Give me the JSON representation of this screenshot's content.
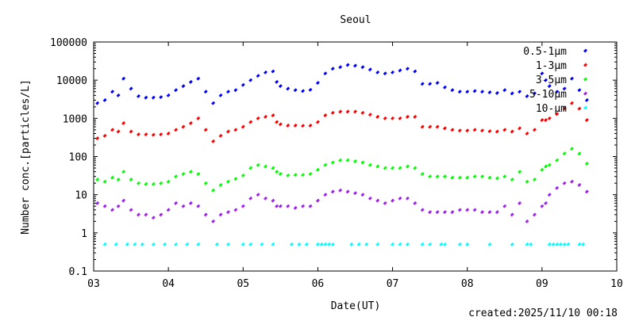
{
  "chart_data": {
    "type": "scatter",
    "title": "Seoul",
    "xlabel": "Date(UT)",
    "ylabel": "Number conc.[particles/L]",
    "yscale": "log",
    "xlim": [
      3,
      10
    ],
    "ylim": [
      0.1,
      100000
    ],
    "x_tick_labels": [
      "03",
      "04",
      "05",
      "06",
      "07",
      "08",
      "09",
      "10"
    ],
    "y_tick_labels": [
      "0.1",
      "1",
      "10",
      "100",
      "1000",
      "10000",
      "100000"
    ],
    "legend_position": "top-right",
    "grid": false,
    "series": [
      {
        "name": "0.5-1μm",
        "color": "#0000ff",
        "x": [
          3.05,
          3.15,
          3.25,
          3.33,
          3.4,
          3.5,
          3.6,
          3.7,
          3.8,
          3.9,
          4.0,
          4.1,
          4.2,
          4.3,
          4.4,
          4.5,
          4.6,
          4.7,
          4.8,
          4.9,
          5.0,
          5.1,
          5.2,
          5.3,
          5.4,
          5.45,
          5.5,
          5.6,
          5.7,
          5.8,
          5.9,
          6.0,
          6.1,
          6.2,
          6.3,
          6.4,
          6.5,
          6.6,
          6.7,
          6.8,
          6.9,
          7.0,
          7.1,
          7.2,
          7.3,
          7.4,
          7.5,
          7.6,
          7.7,
          7.8,
          7.9,
          8.0,
          8.1,
          8.2,
          8.3,
          8.4,
          8.5,
          8.6,
          8.7,
          8.8,
          8.9,
          9.0,
          9.05,
          9.1,
          9.2,
          9.3,
          9.4,
          9.5,
          9.6
        ],
        "y": [
          2500,
          3000,
          5000,
          4000,
          11000,
          6000,
          3800,
          3500,
          3500,
          3600,
          4000,
          5500,
          7000,
          9000,
          11000,
          5000,
          2500,
          4000,
          5000,
          5500,
          7500,
          10000,
          13000,
          16000,
          17000,
          9000,
          7000,
          6000,
          5500,
          5200,
          5600,
          8500,
          15000,
          20000,
          22000,
          25000,
          24000,
          22000,
          19000,
          16000,
          15000,
          16000,
          18000,
          20000,
          17000,
          8000,
          8000,
          8500,
          6500,
          5500,
          5000,
          5000,
          5200,
          5000,
          4800,
          4600,
          5500,
          4500,
          5000,
          3800,
          4500,
          15000,
          10000,
          7000,
          5000,
          6000,
          11000,
          5500,
          3000
        ]
      },
      {
        "name": "1-3μm",
        "color": "#ff0000",
        "x": [
          3.05,
          3.15,
          3.25,
          3.33,
          3.4,
          3.5,
          3.6,
          3.7,
          3.8,
          3.9,
          4.0,
          4.1,
          4.2,
          4.3,
          4.4,
          4.5,
          4.6,
          4.7,
          4.8,
          4.9,
          5.0,
          5.1,
          5.2,
          5.3,
          5.4,
          5.45,
          5.5,
          5.6,
          5.7,
          5.8,
          5.9,
          6.0,
          6.1,
          6.2,
          6.3,
          6.4,
          6.5,
          6.6,
          6.7,
          6.8,
          6.9,
          7.0,
          7.1,
          7.2,
          7.3,
          7.4,
          7.5,
          7.6,
          7.7,
          7.8,
          7.9,
          8.0,
          8.1,
          8.2,
          8.3,
          8.4,
          8.5,
          8.6,
          8.7,
          8.8,
          8.9,
          9.0,
          9.05,
          9.1,
          9.2,
          9.3,
          9.4,
          9.5,
          9.6
        ],
        "y": [
          300,
          350,
          500,
          450,
          750,
          450,
          380,
          380,
          370,
          380,
          400,
          500,
          600,
          750,
          1000,
          500,
          250,
          350,
          450,
          500,
          600,
          800,
          1000,
          1100,
          1200,
          800,
          700,
          650,
          650,
          640,
          650,
          800,
          1200,
          1400,
          1500,
          1500,
          1500,
          1400,
          1250,
          1100,
          1000,
          1000,
          1000,
          1100,
          1100,
          600,
          600,
          600,
          550,
          500,
          480,
          480,
          500,
          480,
          460,
          450,
          500,
          450,
          550,
          400,
          500,
          900,
          900,
          1000,
          1300,
          1800,
          2500,
          1800,
          900
        ]
      },
      {
        "name": "3-5μm",
        "color": "#00ff00",
        "x": [
          3.05,
          3.15,
          3.25,
          3.33,
          3.4,
          3.5,
          3.6,
          3.7,
          3.8,
          3.9,
          4.0,
          4.1,
          4.2,
          4.3,
          4.4,
          4.5,
          4.6,
          4.7,
          4.8,
          4.9,
          5.0,
          5.1,
          5.2,
          5.3,
          5.4,
          5.45,
          5.5,
          5.6,
          5.7,
          5.8,
          5.9,
          6.0,
          6.1,
          6.2,
          6.3,
          6.4,
          6.5,
          6.6,
          6.7,
          6.8,
          6.9,
          7.0,
          7.1,
          7.2,
          7.3,
          7.4,
          7.5,
          7.6,
          7.7,
          7.8,
          7.9,
          8.0,
          8.1,
          8.2,
          8.3,
          8.4,
          8.5,
          8.6,
          8.7,
          8.8,
          8.9,
          9.0,
          9.05,
          9.1,
          9.2,
          9.3,
          9.4,
          9.5,
          9.6
        ],
        "y": [
          25,
          22,
          28,
          25,
          40,
          25,
          20,
          19,
          19,
          20,
          22,
          30,
          35,
          40,
          35,
          20,
          13,
          18,
          22,
          26,
          32,
          50,
          60,
          55,
          50,
          40,
          35,
          32,
          33,
          33,
          35,
          45,
          60,
          70,
          80,
          80,
          75,
          70,
          60,
          55,
          50,
          50,
          50,
          55,
          50,
          35,
          30,
          30,
          30,
          28,
          28,
          28,
          30,
          30,
          28,
          27,
          30,
          25,
          40,
          22,
          25,
          45,
          55,
          60,
          80,
          120,
          160,
          120,
          65
        ]
      },
      {
        "name": "5-10μm",
        "color": "#a020f0",
        "x": [
          3.05,
          3.15,
          3.25,
          3.33,
          3.4,
          3.5,
          3.6,
          3.7,
          3.8,
          3.9,
          4.0,
          4.1,
          4.2,
          4.3,
          4.4,
          4.5,
          4.6,
          4.7,
          4.8,
          4.9,
          5.0,
          5.1,
          5.2,
          5.3,
          5.4,
          5.45,
          5.5,
          5.6,
          5.7,
          5.8,
          5.9,
          6.0,
          6.1,
          6.2,
          6.3,
          6.4,
          6.5,
          6.6,
          6.7,
          6.8,
          6.9,
          7.0,
          7.1,
          7.2,
          7.3,
          7.4,
          7.5,
          7.6,
          7.7,
          7.8,
          7.9,
          8.0,
          8.1,
          8.2,
          8.3,
          8.4,
          8.5,
          8.6,
          8.7,
          8.8,
          8.9,
          9.0,
          9.05,
          9.1,
          9.2,
          9.3,
          9.4,
          9.5,
          9.6
        ],
        "y": [
          6,
          5,
          4,
          5,
          7,
          4,
          3,
          3,
          2.5,
          3,
          4,
          6,
          5,
          6,
          5,
          3,
          2,
          3,
          3.5,
          4,
          5,
          8,
          10,
          8,
          7,
          5,
          5,
          5,
          4.5,
          5,
          5,
          7,
          10,
          12,
          13,
          12,
          11,
          10,
          8,
          7,
          6,
          7,
          8,
          8,
          6,
          4,
          3.5,
          3.5,
          3.5,
          3.5,
          4,
          4,
          4,
          3.5,
          3.5,
          3.5,
          5,
          3,
          6,
          2,
          3,
          5,
          6,
          10,
          15,
          20,
          22,
          18,
          12
        ]
      },
      {
        "name": "10-μm",
        "color": "#00ffff",
        "x": [
          3.15,
          3.3,
          3.45,
          3.55,
          3.65,
          3.8,
          3.95,
          4.1,
          4.25,
          4.4,
          4.65,
          4.8,
          5.0,
          5.1,
          5.25,
          5.4,
          5.65,
          5.75,
          5.85,
          6.0,
          6.05,
          6.1,
          6.15,
          6.2,
          6.45,
          6.55,
          6.65,
          6.8,
          7.0,
          7.1,
          7.2,
          7.4,
          7.5,
          7.65,
          7.7,
          7.9,
          8.0,
          8.3,
          8.6,
          8.8,
          8.85,
          9.1,
          9.15,
          9.2,
          9.25,
          9.3,
          9.35,
          9.5,
          9.55
        ],
        "y": [
          0.5,
          0.5,
          0.5,
          0.5,
          0.5,
          0.5,
          0.5,
          0.5,
          0.5,
          0.5,
          0.5,
          0.5,
          0.5,
          0.5,
          0.5,
          0.5,
          0.5,
          0.5,
          0.5,
          0.5,
          0.5,
          0.5,
          0.5,
          0.5,
          0.5,
          0.5,
          0.5,
          0.5,
          0.5,
          0.5,
          0.5,
          0.5,
          0.5,
          0.5,
          0.5,
          0.5,
          0.5,
          0.5,
          0.5,
          0.5,
          0.5,
          0.5,
          0.5,
          0.5,
          0.5,
          0.5,
          0.5,
          0.5,
          0.5
        ]
      }
    ]
  },
  "footer": {
    "created": "created:2025/11/10 00:18"
  }
}
